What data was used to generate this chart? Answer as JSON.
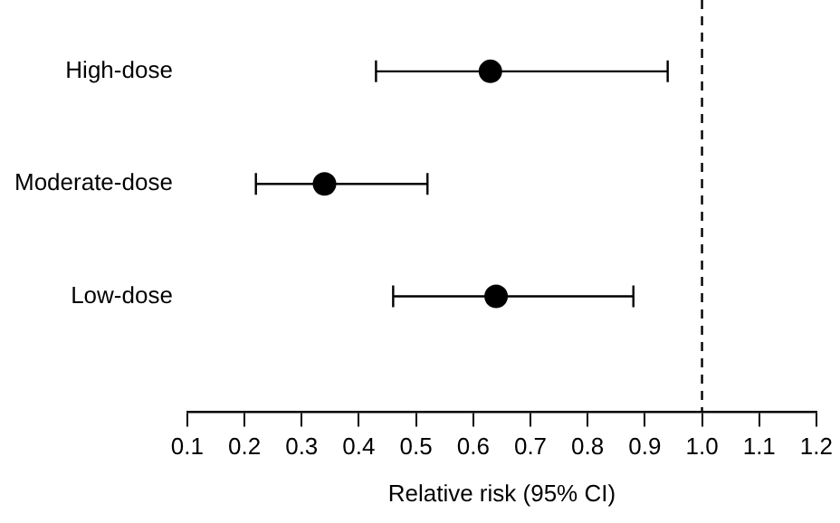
{
  "chart_data": {
    "type": "scatter",
    "orientation": "horizontal",
    "categories": [
      "High-dose",
      "Moderate-dose",
      "Low-dose"
    ],
    "series": [
      {
        "color": "#000000",
        "values": [
          0.63,
          0.34,
          0.64
        ],
        "errors": [
          [
            0.43,
            0.94
          ],
          [
            0.22,
            0.52
          ],
          [
            0.46,
            0.88
          ]
        ]
      }
    ],
    "xlabel": "Relative risk (95% CI)",
    "xlim": [
      0.1,
      1.2
    ],
    "xticks": [
      {
        "value": 0.1,
        "label": "0.1"
      },
      {
        "value": 0.2,
        "label": "0.2"
      },
      {
        "value": 0.3,
        "label": "0.3"
      },
      {
        "value": 0.4,
        "label": "0.4"
      },
      {
        "value": 0.5,
        "label": "0.5"
      },
      {
        "value": 0.6,
        "label": "0.6"
      },
      {
        "value": 0.7,
        "label": "0.7"
      },
      {
        "value": 0.8,
        "label": "0.8"
      },
      {
        "value": 0.9,
        "label": "0.9"
      },
      {
        "value": 1.0,
        "label": "1.0"
      },
      {
        "value": 1.1,
        "label": "1.1"
      },
      {
        "value": 1.2,
        "label": "1.2"
      }
    ],
    "ref_lines": [
      {
        "axis": "x",
        "value": 1.0,
        "line_style": "dashed",
        "color": "#000000"
      }
    ],
    "marker": "circle",
    "grid": false,
    "legend": false
  }
}
